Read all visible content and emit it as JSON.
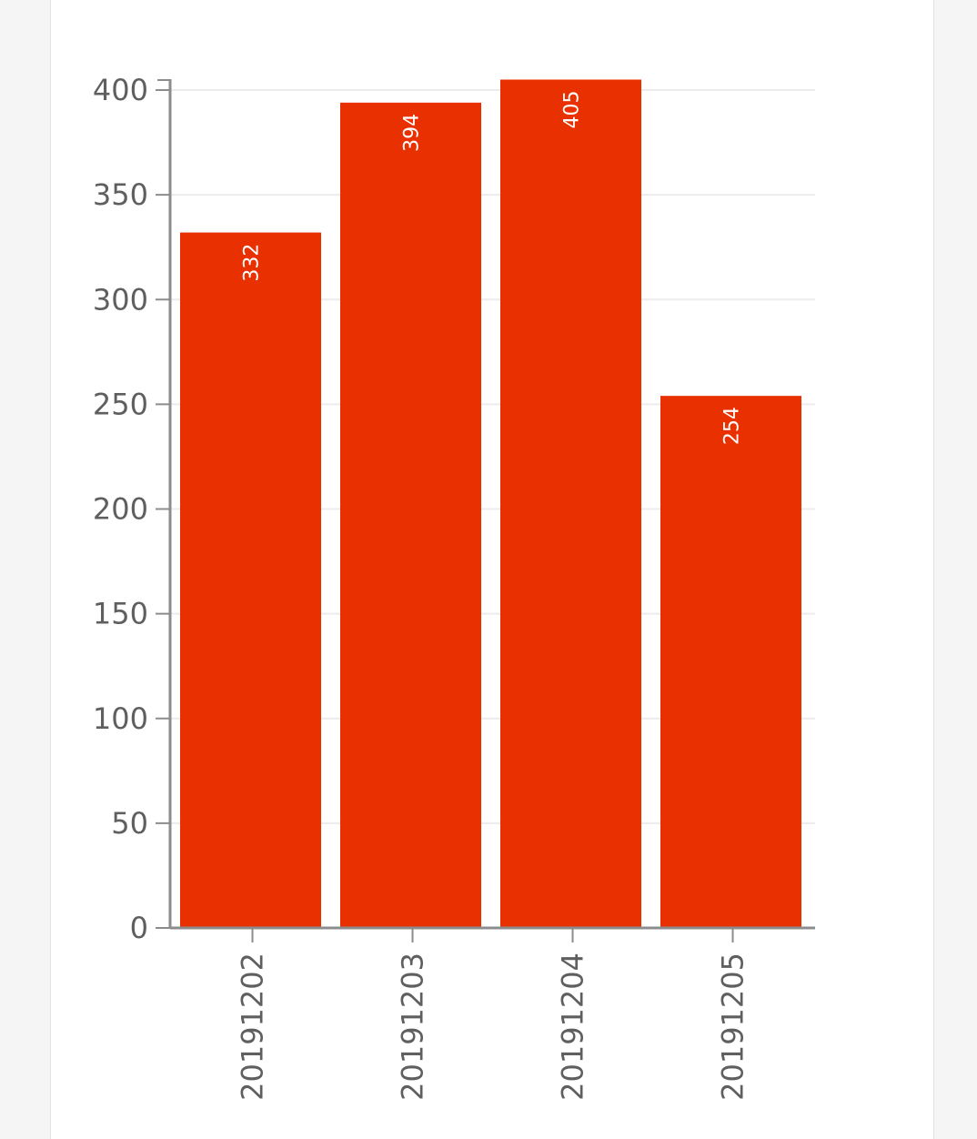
{
  "colors": {
    "bar": "#e83000",
    "axis": "#8c8c8c",
    "grid": "#ececec",
    "tick_text": "#5f5f5f",
    "background": "#f5f5f5",
    "card": "#ffffff"
  },
  "chart_data": {
    "type": "bar",
    "orientation": "vertical",
    "categories": [
      "20191202",
      "20191203",
      "20191204",
      "20191205"
    ],
    "values": [
      332,
      394,
      405,
      254
    ],
    "ylim": [
      0,
      400
    ],
    "yticks": [
      0,
      50,
      100,
      150,
      200,
      250,
      300,
      350,
      400
    ],
    "ytick_labels": [
      "0",
      "50",
      "100",
      "150",
      "200",
      "250",
      "300",
      "350",
      "400"
    ],
    "xtick_labels": [
      "20191202",
      "20191203",
      "20191204",
      "20191205"
    ],
    "data_labels": [
      "332",
      "394",
      "405",
      "254"
    ],
    "grid": true,
    "legend": "none",
    "title": "",
    "xlabel": "",
    "ylabel": ""
  }
}
